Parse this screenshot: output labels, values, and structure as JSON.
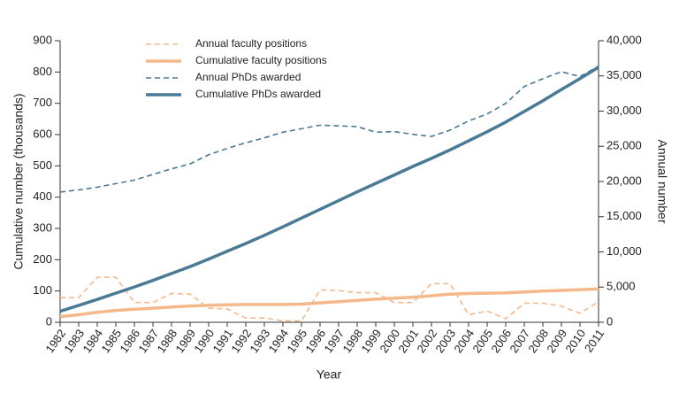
{
  "chart_data": {
    "type": "line",
    "xlabel": "Year",
    "ylabel": "Cumulative number (thousands)",
    "y2label": "Annual number",
    "categories": [
      "1982",
      "1983",
      "1984",
      "1985",
      "1986",
      "1987",
      "1988",
      "1989",
      "1990",
      "1991",
      "1992",
      "1993",
      "1994",
      "1995",
      "1996",
      "1997",
      "1998",
      "1999",
      "2000",
      "2001",
      "2002",
      "2003",
      "2004",
      "2005",
      "2006",
      "2007",
      "2008",
      "2009",
      "2010",
      "2011"
    ],
    "series": [
      {
        "name": "Annual faculty positions",
        "color": "#f5b88a",
        "style": "dashed",
        "axis": "y2",
        "values": [
          3500,
          3500,
          6400,
          6400,
          2800,
          2800,
          4100,
          4000,
          2000,
          1900,
          600,
          600,
          200,
          200,
          4600,
          4500,
          4200,
          4200,
          2800,
          2800,
          5500,
          5500,
          1100,
          1600,
          500,
          2700,
          2700,
          2300,
          1300,
          2900
        ]
      },
      {
        "name": "Cumulative faculty positions",
        "color": "#f5b88a",
        "style": "solid",
        "values": [
          18,
          24,
          32,
          38,
          42,
          45,
          49,
          52,
          54,
          56,
          57,
          57,
          57,
          58,
          62,
          66,
          70,
          74,
          77,
          80,
          85,
          90,
          92,
          93,
          94,
          97,
          100,
          102,
          104,
          107
        ]
      },
      {
        "name": "Annual PhDs awarded",
        "color": "#4a7a96",
        "style": "dashed",
        "axis": "y2",
        "values": [
          18500,
          18800,
          19200,
          19700,
          20200,
          21000,
          21800,
          22500,
          23800,
          24700,
          25500,
          26200,
          27000,
          27500,
          28000,
          27900,
          27800,
          27000,
          27100,
          26700,
          26400,
          27300,
          28600,
          29600,
          31100,
          33500,
          34600,
          35600,
          34900,
          36400
        ]
      },
      {
        "name": "Cumulative PhDs awarded",
        "color": "#4a7a96",
        "style": "solid",
        "values": [
          35,
          54,
          73,
          93,
          113,
          134,
          156,
          178,
          202,
          227,
          252,
          278,
          305,
          333,
          361,
          389,
          417,
          444,
          471,
          498,
          524,
          551,
          580,
          609,
          640,
          674,
          708,
          744,
          779,
          815
        ]
      }
    ],
    "ylim": [
      0,
      900
    ],
    "yticks": [
      0,
      100,
      200,
      300,
      400,
      500,
      600,
      700,
      800,
      900
    ],
    "y2lim": [
      0,
      40000
    ],
    "y2ticks": [
      0,
      {
        "value": 5000,
        "label": "5,000"
      },
      {
        "value": 10000,
        "label": "10,000"
      },
      {
        "value": 15000,
        "label": "15,000"
      },
      {
        "value": 20000,
        "label": "20,000"
      },
      {
        "value": 25000,
        "label": "25,000"
      },
      {
        "value": 30000,
        "label": "30,000"
      },
      {
        "value": 35000,
        "label": "35,000"
      },
      {
        "value": 40000,
        "label": "40,000"
      }
    ],
    "legend": "upper left"
  }
}
